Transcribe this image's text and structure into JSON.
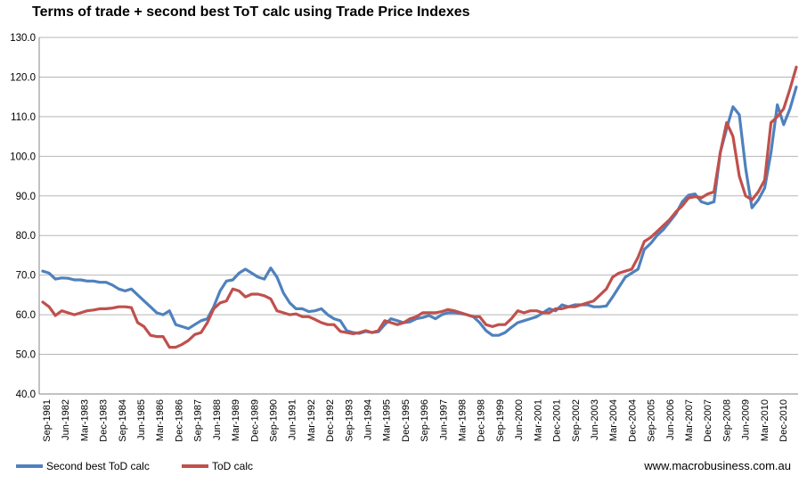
{
  "chart_data": {
    "type": "line",
    "title": "Terms of trade + second best ToT calc using Trade Price Indexes",
    "xlabel": "",
    "ylabel": "",
    "ylim": [
      40,
      130
    ],
    "yticks": [
      "40.0",
      "50.0",
      "60.0",
      "70.0",
      "80.0",
      "90.0",
      "100.0",
      "110.0",
      "120.0",
      "130.0"
    ],
    "x_labels": [
      "Sep-1981",
      "Jun-1982",
      "Mar-1983",
      "Dec-1983",
      "Sep-1984",
      "Jun-1985",
      "Mar-1986",
      "Dec-1986",
      "Sep-1987",
      "Jun-1988",
      "Mar-1989",
      "Dec-1989",
      "Sep-1990",
      "Jun-1991",
      "Mar-1992",
      "Dec-1992",
      "Sep-1993",
      "Jun-1994",
      "Mar-1995",
      "Dec-1995",
      "Sep-1996",
      "Jun-1997",
      "Mar-1998",
      "Dec-1998",
      "Sep-1999",
      "Jun-2000",
      "Mar-2001",
      "Dec-2001",
      "Sep-2002",
      "Jun-2003",
      "Mar-2004",
      "Dec-2004",
      "Sep-2005",
      "Jun-2006",
      "Mar-2007",
      "Dec-2007",
      "Sep-2008",
      "Jun-2009",
      "Mar-2010",
      "Dec-2010"
    ],
    "series": [
      {
        "name": "Second best ToD calc",
        "color": "#4f81bd",
        "values": [
          71.0,
          70.5,
          69.0,
          69.3,
          69.2,
          68.8,
          68.8,
          68.5,
          68.5,
          68.2,
          68.2,
          67.5,
          66.5,
          66.0,
          66.5,
          65.0,
          63.5,
          62.0,
          60.5,
          60.0,
          61.0,
          57.5,
          57.0,
          56.5,
          57.5,
          58.5,
          59.0,
          62.0,
          66.0,
          68.5,
          68.8,
          70.5,
          71.5,
          70.5,
          69.5,
          69.0,
          71.8,
          69.5,
          65.5,
          63.0,
          61.5,
          61.5,
          60.8,
          61.0,
          61.5,
          60.0,
          59.0,
          58.5,
          56.0,
          55.5,
          55.3,
          55.8,
          55.5,
          55.7,
          57.5,
          59.0,
          58.5,
          58.0,
          58.2,
          59.0,
          59.3,
          59.8,
          59.0,
          60.0,
          60.5,
          60.5,
          60.3,
          60.0,
          59.5,
          58.0,
          56.0,
          54.8,
          54.8,
          55.5,
          56.8,
          58.0,
          58.5,
          59.0,
          59.5,
          60.5,
          61.5,
          61.0,
          62.5,
          62.0,
          62.5,
          62.5,
          62.5,
          62.0,
          62.0,
          62.2,
          64.5,
          67.0,
          69.5,
          70.5,
          71.5,
          76.5,
          78.0,
          80.0,
          81.5,
          83.5,
          85.5,
          88.5,
          90.2,
          90.5,
          88.5,
          88.0,
          88.5,
          101.0,
          107.0,
          112.5,
          110.5,
          97.0,
          87.0,
          89.0,
          92.0,
          101.0,
          113.0,
          108.0,
          112.0,
          117.5
        ]
      },
      {
        "name": "ToD calc",
        "color": "#c0504d",
        "values": [
          63.2,
          62.0,
          59.8,
          61.0,
          60.5,
          60.0,
          60.5,
          61.0,
          61.2,
          61.5,
          61.5,
          61.7,
          62.0,
          62.0,
          61.8,
          58.0,
          57.0,
          54.8,
          54.5,
          54.5,
          51.8,
          51.8,
          52.5,
          53.5,
          55.0,
          55.5,
          58.0,
          61.5,
          63.0,
          63.5,
          66.5,
          66.0,
          64.5,
          65.2,
          65.2,
          64.8,
          64.0,
          61.0,
          60.5,
          60.0,
          60.2,
          59.5,
          59.5,
          58.8,
          58.0,
          57.5,
          57.5,
          55.8,
          55.5,
          55.2,
          55.5,
          56.0,
          55.5,
          56.0,
          58.5,
          58.0,
          57.5,
          58.0,
          59.0,
          59.5,
          60.5,
          60.5,
          60.5,
          60.8,
          61.3,
          61.0,
          60.5,
          60.0,
          59.5,
          59.5,
          57.5,
          57.0,
          57.5,
          57.5,
          59.0,
          61.0,
          60.5,
          61.0,
          61.0,
          60.5,
          60.5,
          61.5,
          61.5,
          62.0,
          62.0,
          62.5,
          63.0,
          63.5,
          65.0,
          66.5,
          69.5,
          70.5,
          71.0,
          71.5,
          74.5,
          78.5,
          79.5,
          81.0,
          82.5,
          84.0,
          86.0,
          87.5,
          89.5,
          89.8,
          89.5,
          90.5,
          91.0,
          101.0,
          108.5,
          105.0,
          95.0,
          90.0,
          89.0,
          91.0,
          94.0,
          108.5,
          110.0,
          112.0,
          117.0,
          122.5
        ]
      }
    ],
    "legend_position": "bottom-left"
  },
  "source": "www.macrobusiness.com.au"
}
